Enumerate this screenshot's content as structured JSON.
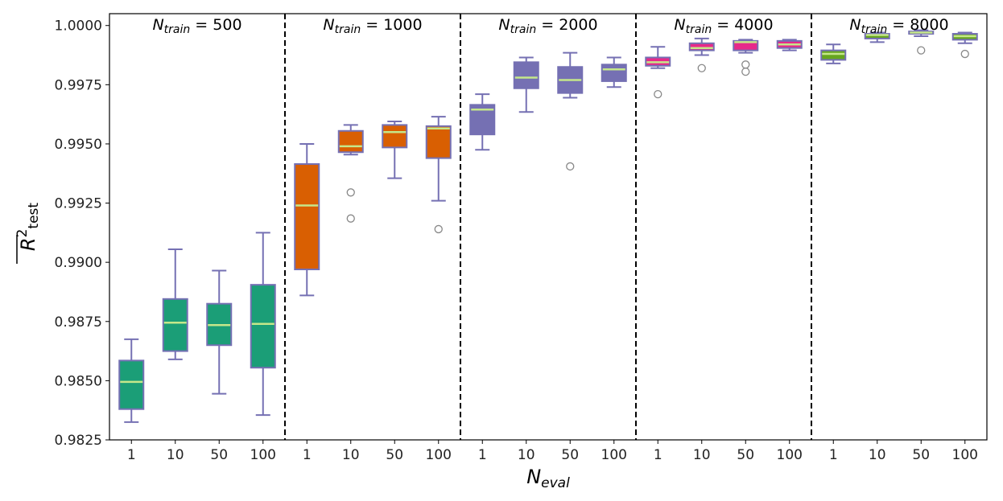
{
  "chart_data": {
    "type": "boxplot",
    "title": "",
    "xlabel": {
      "main": "N",
      "sub": "eval"
    },
    "ylabel": {
      "main": "R",
      "sup": "2",
      "sub": "test"
    },
    "ylim": [
      0.9825,
      1.0005
    ],
    "yticks": [
      0.9825,
      0.985,
      0.9875,
      0.99,
      0.9925,
      0.995,
      0.9975,
      1.0
    ],
    "ytick_labels": [
      "0.9825",
      "0.9850",
      "0.9875",
      "0.9900",
      "0.9925",
      "0.9950",
      "0.9975",
      "1.0000"
    ],
    "categories": [
      "1",
      "10",
      "50",
      "100"
    ],
    "colors": {
      "median": "#c5e78a",
      "edge": "#7570b3",
      "whisker": "#7570b3",
      "flier": "#888888",
      "separator": "#000000"
    },
    "groups": [
      {
        "title_main": "N",
        "title_sub": "train",
        "title_value": "= 500",
        "color": "#1b9e77",
        "boxes": [
          {
            "category": "1",
            "whislo": 0.98325,
            "q1": 0.9838,
            "med": 0.98495,
            "q3": 0.98585,
            "whishi": 0.98675,
            "fliers": []
          },
          {
            "category": "10",
            "whislo": 0.9859,
            "q1": 0.98625,
            "med": 0.98745,
            "q3": 0.98845,
            "whishi": 0.99055,
            "fliers": []
          },
          {
            "category": "50",
            "whislo": 0.98445,
            "q1": 0.9865,
            "med": 0.98735,
            "q3": 0.98825,
            "whishi": 0.98965,
            "fliers": []
          },
          {
            "category": "100",
            "whislo": 0.98355,
            "q1": 0.98555,
            "med": 0.9874,
            "q3": 0.98905,
            "whishi": 0.99125,
            "fliers": []
          }
        ]
      },
      {
        "title_main": "N",
        "title_sub": "train",
        "title_value": "= 1000",
        "color": "#d95f02",
        "boxes": [
          {
            "category": "1",
            "whislo": 0.9886,
            "q1": 0.9897,
            "med": 0.9924,
            "q3": 0.99415,
            "whishi": 0.995,
            "fliers": []
          },
          {
            "category": "10",
            "whislo": 0.99455,
            "q1": 0.99465,
            "med": 0.9949,
            "q3": 0.99555,
            "whishi": 0.9958,
            "fliers": [
              0.99295,
              0.99185
            ]
          },
          {
            "category": "50",
            "whislo": 0.99355,
            "q1": 0.99485,
            "med": 0.9955,
            "q3": 0.9958,
            "whishi": 0.99595,
            "fliers": []
          },
          {
            "category": "100",
            "whislo": 0.9926,
            "q1": 0.9944,
            "med": 0.99565,
            "q3": 0.99575,
            "whishi": 0.99615,
            "fliers": [
              0.9914
            ]
          }
        ]
      },
      {
        "title_main": "N",
        "title_sub": "train",
        "title_value": "= 2000",
        "color": "#7570b3",
        "boxes": [
          {
            "category": "1",
            "whislo": 0.99475,
            "q1": 0.9954,
            "med": 0.99645,
            "q3": 0.99665,
            "whishi": 0.9971,
            "fliers": []
          },
          {
            "category": "10",
            "whislo": 0.99635,
            "q1": 0.99735,
            "med": 0.9978,
            "q3": 0.99845,
            "whishi": 0.99865,
            "fliers": []
          },
          {
            "category": "50",
            "whislo": 0.99695,
            "q1": 0.99715,
            "med": 0.9977,
            "q3": 0.99825,
            "whishi": 0.99885,
            "fliers": [
              0.99405
            ]
          },
          {
            "category": "100",
            "whislo": 0.9974,
            "q1": 0.99765,
            "med": 0.99815,
            "q3": 0.99835,
            "whishi": 0.99865,
            "fliers": []
          }
        ]
      },
      {
        "title_main": "N",
        "title_sub": "train",
        "title_value": "= 4000",
        "color": "#e7298a",
        "boxes": [
          {
            "category": "1",
            "whislo": 0.9982,
            "q1": 0.9983,
            "med": 0.99845,
            "q3": 0.99865,
            "whishi": 0.9991,
            "fliers": [
              0.9971
            ]
          },
          {
            "category": "10",
            "whislo": 0.99875,
            "q1": 0.99895,
            "med": 0.99905,
            "q3": 0.99925,
            "whishi": 0.99945,
            "fliers": [
              0.9982
            ]
          },
          {
            "category": "50",
            "whislo": 0.99885,
            "q1": 0.99895,
            "med": 0.9993,
            "q3": 0.99935,
            "whishi": 0.9994,
            "fliers": [
              0.99835,
              0.99805
            ]
          },
          {
            "category": "100",
            "whislo": 0.99895,
            "q1": 0.99905,
            "med": 0.9992,
            "q3": 0.99935,
            "whishi": 0.9994,
            "fliers": []
          }
        ]
      },
      {
        "title_main": "N",
        "title_sub": "train",
        "title_value": "= 8000",
        "color": "#66a61e",
        "boxes": [
          {
            "category": "1",
            "whislo": 0.9984,
            "q1": 0.99855,
            "med": 0.9988,
            "q3": 0.99895,
            "whishi": 0.9992,
            "fliers": []
          },
          {
            "category": "10",
            "whislo": 0.9993,
            "q1": 0.99945,
            "med": 0.9996,
            "q3": 0.99965,
            "whishi": 0.9997,
            "fliers": []
          },
          {
            "category": "50",
            "whislo": 0.99955,
            "q1": 0.99965,
            "med": 0.9997,
            "q3": 0.99975,
            "whishi": 0.9998,
            "fliers": [
              0.99895
            ]
          },
          {
            "category": "100",
            "whislo": 0.99925,
            "q1": 0.9994,
            "med": 0.99955,
            "q3": 0.99965,
            "whishi": 0.9997,
            "fliers": [
              0.9988
            ]
          }
        ]
      }
    ]
  }
}
